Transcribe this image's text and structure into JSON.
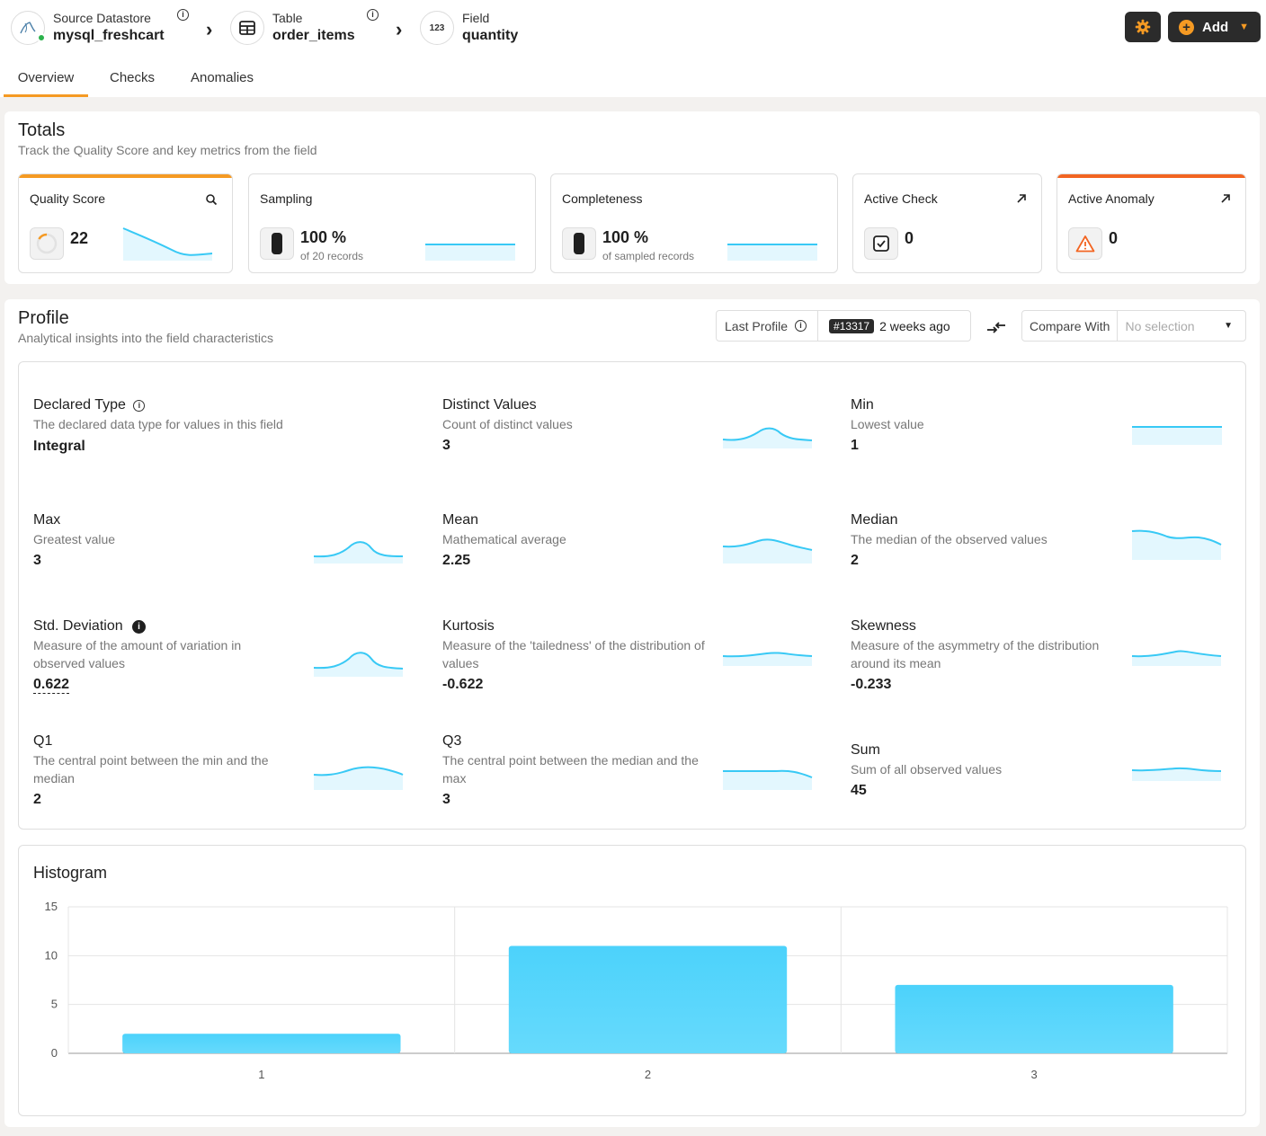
{
  "breadcrumb": {
    "datastore": {
      "label": "Source Datastore",
      "value": "mysql_freshcart"
    },
    "table": {
      "label": "Table",
      "value": "order_items"
    },
    "field": {
      "label": "Field",
      "value": "quantity",
      "type_glyph": "123"
    }
  },
  "actions": {
    "add_label": "Add"
  },
  "tabs": [
    {
      "label": "Overview",
      "active": true
    },
    {
      "label": "Checks",
      "active": false
    },
    {
      "label": "Anomalies",
      "active": false
    }
  ],
  "totals": {
    "title": "Totals",
    "subtitle": "Track the Quality Score and key metrics from the field",
    "quality_score": {
      "label": "Quality Score",
      "value": "22",
      "accent": "#f59a23"
    },
    "sampling": {
      "label": "Sampling",
      "value": "100 %",
      "sub": "of 20 records"
    },
    "completeness": {
      "label": "Completeness",
      "value": "100 %",
      "sub": "of sampled records"
    },
    "active_check": {
      "label": "Active Check",
      "value": "0"
    },
    "active_anomaly": {
      "label": "Active Anomaly",
      "value": "0",
      "accent": "#f26522"
    }
  },
  "profile": {
    "title": "Profile",
    "subtitle": "Analytical insights into the field characteristics",
    "last_profile_label": "Last Profile",
    "profile_id": "#13317",
    "profile_age": "2 weeks ago",
    "compare_label": "Compare With",
    "compare_placeholder": "No selection",
    "stats": {
      "declared_type": {
        "title": "Declared Type",
        "desc": "The declared data type for values in this field",
        "value": "Integral"
      },
      "distinct": {
        "title": "Distinct Values",
        "desc": "Count of distinct values",
        "value": "3"
      },
      "min": {
        "title": "Min",
        "desc": "Lowest value",
        "value": "1"
      },
      "max": {
        "title": "Max",
        "desc": "Greatest value",
        "value": "3"
      },
      "mean": {
        "title": "Mean",
        "desc": "Mathematical average",
        "value": "2.25"
      },
      "median": {
        "title": "Median",
        "desc": "The median of the observed values",
        "value": "2"
      },
      "std": {
        "title": "Std. Deviation",
        "desc": "Measure of the amount of variation in observed values",
        "value": "0.622"
      },
      "kurtosis": {
        "title": "Kurtosis",
        "desc": "Measure of the 'tailedness' of the distribution of values",
        "value": "-0.622"
      },
      "skewness": {
        "title": "Skewness",
        "desc": "Measure of the asymmetry of the distribution around its mean",
        "value": "-0.233"
      },
      "q1": {
        "title": "Q1",
        "desc": "The central point between the min and the median",
        "value": "2"
      },
      "q3": {
        "title": "Q3",
        "desc": "The central point between the median and the max",
        "value": "3"
      },
      "sum": {
        "title": "Sum",
        "desc": "Sum of all observed values",
        "value": "45"
      }
    }
  },
  "chart_data": {
    "type": "bar",
    "title": "Histogram",
    "categories": [
      "1",
      "2",
      "3"
    ],
    "values": [
      2,
      11,
      7
    ],
    "ylim": [
      0,
      15
    ],
    "yticks": [
      0,
      5,
      10,
      15
    ],
    "color": "#4fd3fb",
    "grid": true
  }
}
